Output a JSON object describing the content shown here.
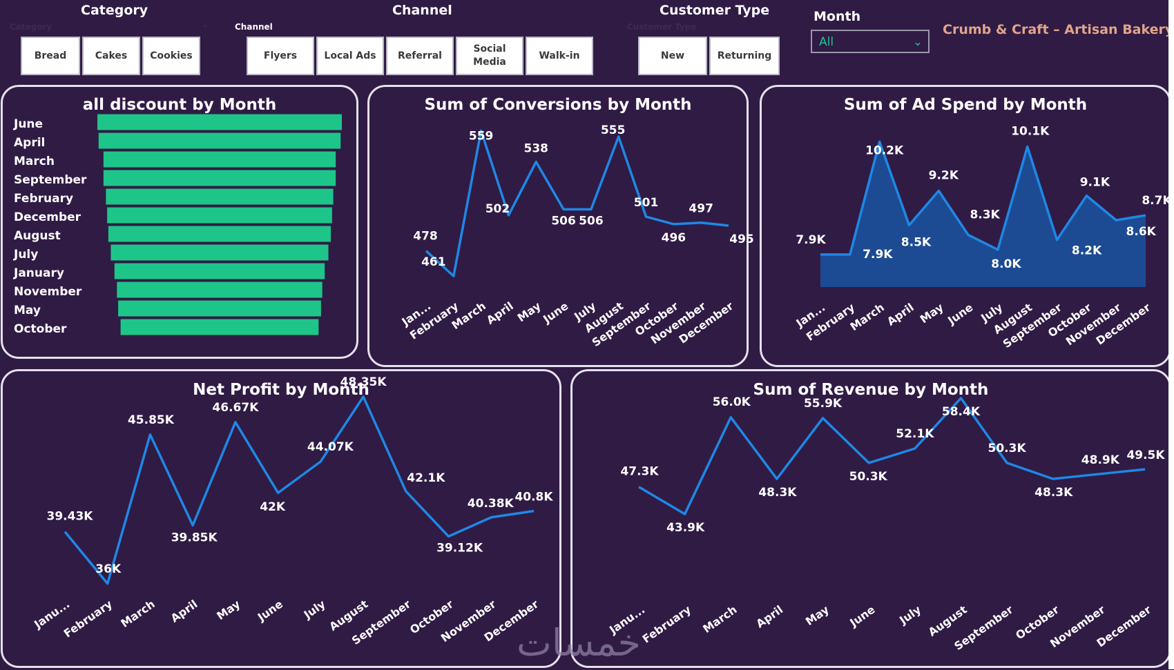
{
  "slicers": {
    "category": {
      "title": "Category",
      "sub": "Category",
      "items": [
        "Bread",
        "Cakes",
        "Cookies"
      ]
    },
    "channel": {
      "title": "Channel",
      "sub": "Channel",
      "items": [
        "Flyers",
        "Local Ads",
        "Referral",
        "Social\nMedia",
        "Walk-in"
      ]
    },
    "customer_type": {
      "title": "Customer Type",
      "sub": "Customer Type",
      "items": [
        "New",
        "Returning"
      ]
    },
    "month": {
      "title": "Month",
      "selected": "All"
    }
  },
  "brand": "Crumb & Craft – Artisan Bakery",
  "watermark": "خمسات",
  "colors": {
    "background": "#301b45",
    "bar": "#1ec589",
    "line": "#1e88e5",
    "area": "#1d4b93",
    "brand": "#e0a58a",
    "chip": "#ffffff"
  },
  "chart_data": [
    {
      "id": "discount",
      "type": "bar",
      "orientation": "horizontal",
      "title": "all discount by Month",
      "categories": [
        "June",
        "April",
        "March",
        "September",
        "February",
        "December",
        "August",
        "July",
        "January",
        "November",
        "May",
        "October"
      ],
      "values": [
        100,
        99,
        95,
        95,
        93,
        92,
        91,
        89,
        86,
        84,
        83,
        81
      ]
    },
    {
      "id": "conversions",
      "type": "line",
      "title": "Sum of Conversions by Month",
      "categories": [
        "Jan...",
        "February",
        "March",
        "April",
        "May",
        "June",
        "July",
        "August",
        "September",
        "October",
        "November",
        "December"
      ],
      "values": [
        478,
        461,
        559,
        502,
        538,
        506,
        506,
        555,
        501,
        496,
        497,
        495
      ],
      "labels": [
        "478",
        "461",
        "559",
        "502",
        "538",
        "506",
        "506",
        "555",
        "501",
        "496",
        "497",
        "495"
      ]
    },
    {
      "id": "adspend",
      "type": "area",
      "title": "Sum of Ad Spend by Month",
      "categories": [
        "Jan...",
        "February",
        "March",
        "April",
        "May",
        "June",
        "July",
        "August",
        "September",
        "October",
        "November",
        "December"
      ],
      "values": [
        7900,
        7900,
        10200,
        8500,
        9200,
        8300,
        8000,
        10100,
        8200,
        9100,
        8600,
        8700
      ],
      "labels": [
        "7.9K",
        "7.9K",
        "10.2K",
        "8.5K",
        "9.2K",
        "8.3K",
        "8.0K",
        "10.1K",
        "8.2K",
        "9.1K",
        "8.6K",
        "8.7K"
      ]
    },
    {
      "id": "netprofit",
      "type": "line",
      "title": "Net Profit by Month",
      "categories": [
        "Janu...",
        "February",
        "March",
        "April",
        "May",
        "June",
        "July",
        "August",
        "September",
        "October",
        "November",
        "December"
      ],
      "values": [
        39430,
        36000,
        45850,
        39850,
        46670,
        42000,
        44070,
        48350,
        42100,
        39120,
        40380,
        40800
      ],
      "labels": [
        "39.43K",
        "36K",
        "45.85K",
        "39.85K",
        "46.67K",
        "42K",
        "44.07K",
        "48.35K",
        "42.1K",
        "39.12K",
        "40.38K",
        "40.8K"
      ]
    },
    {
      "id": "revenue",
      "type": "line",
      "title": "Sum of Revenue by Month",
      "categories": [
        "Janu...",
        "February",
        "March",
        "April",
        "May",
        "June",
        "July",
        "August",
        "September",
        "October",
        "November",
        "December"
      ],
      "values": [
        47300,
        43900,
        56000,
        48300,
        55900,
        50300,
        52100,
        58400,
        50300,
        48300,
        48900,
        49500
      ],
      "labels": [
        "47.3K",
        "43.9K",
        "56.0K",
        "48.3K",
        "55.9K",
        "50.3K",
        "52.1K",
        "58.4K",
        "50.3K",
        "48.3K",
        "48.9K",
        "49.5K"
      ]
    }
  ]
}
